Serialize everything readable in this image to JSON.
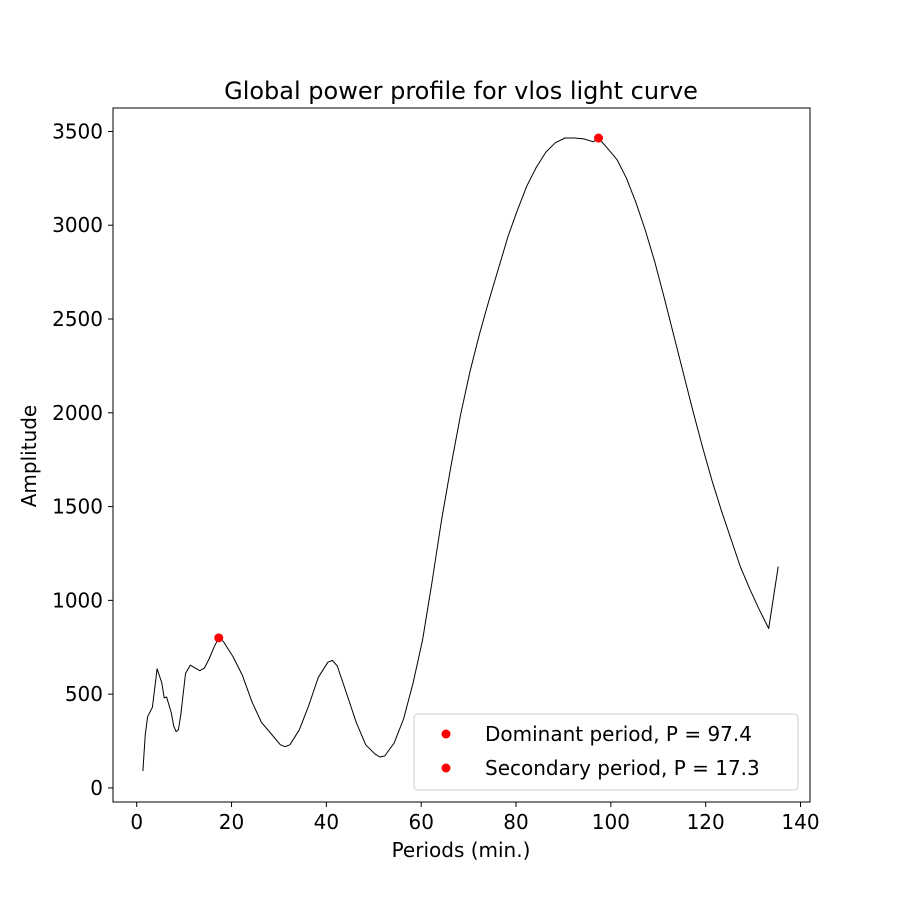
{
  "chart_data": {
    "type": "line",
    "title": "Global power profile for vlos light curve",
    "xlabel": "Periods (min.)",
    "ylabel": "Amplitude",
    "xlim": [
      -5,
      142
    ],
    "ylim": [
      -75,
      3625
    ],
    "xticks": [
      0,
      20,
      40,
      60,
      80,
      100,
      120,
      140
    ],
    "yticks": [
      0,
      500,
      1000,
      1500,
      2000,
      2500,
      3000,
      3500
    ],
    "grid": false,
    "legend_position": "lower-right",
    "series": [
      {
        "type": "line",
        "color": "#000000",
        "x": [
          1.3,
          1.8,
          2.3,
          3.3,
          4.3,
          5.3,
          5.8,
          6.3,
          7.3,
          7.8,
          8.3,
          8.8,
          9.3,
          10.3,
          11.3,
          12.3,
          13.3,
          14.3,
          15.3,
          16.3,
          17.3,
          18.3,
          19.3,
          20.3,
          22.3,
          24.3,
          26.3,
          28.3,
          30.3,
          31.3,
          32.3,
          34.3,
          36.3,
          38.3,
          40.3,
          41.3,
          42.3,
          44.3,
          46.3,
          48.3,
          50.3,
          51.3,
          52.3,
          54.3,
          56.3,
          58.3,
          60.3,
          62.3,
          64.3,
          66.3,
          68.3,
          70.3,
          72.3,
          74.3,
          76.3,
          78.3,
          80.3,
          82.3,
          84.3,
          86.3,
          88.3,
          90.3,
          92.3,
          94.3,
          96.3,
          97.4,
          99.3,
          101.3,
          103.3,
          105.3,
          107.3,
          109.3,
          111.3,
          113.3,
          115.3,
          117.3,
          119.3,
          121.3,
          123.3,
          125.3,
          127.3,
          129.3,
          131.3,
          133.3,
          135.3
        ],
        "values": [
          90,
          280,
          380,
          430,
          635,
          560,
          480,
          485,
          400,
          330,
          300,
          310,
          390,
          610,
          655,
          640,
          625,
          640,
          690,
          750,
          800,
          780,
          740,
          700,
          600,
          460,
          350,
          290,
          230,
          220,
          230,
          310,
          440,
          590,
          670,
          680,
          650,
          500,
          350,
          230,
          180,
          165,
          170,
          240,
          370,
          560,
          790,
          1100,
          1430,
          1720,
          1990,
          2220,
          2420,
          2600,
          2770,
          2940,
          3080,
          3210,
          3310,
          3390,
          3440,
          3465,
          3465,
          3460,
          3445,
          3465,
          3410,
          3350,
          3250,
          3120,
          2970,
          2800,
          2610,
          2410,
          2210,
          2010,
          1820,
          1640,
          1480,
          1330,
          1180,
          1060,
          950,
          850,
          1180
        ]
      },
      {
        "type": "scatter",
        "name": "Dominant period, P = 97.4",
        "color": "#ff0000",
        "x": [
          97.4
        ],
        "values": [
          3465
        ]
      },
      {
        "type": "scatter",
        "name": "Secondary period, P = 17.3",
        "color": "#ff0000",
        "x": [
          17.3
        ],
        "values": [
          800
        ]
      }
    ]
  }
}
